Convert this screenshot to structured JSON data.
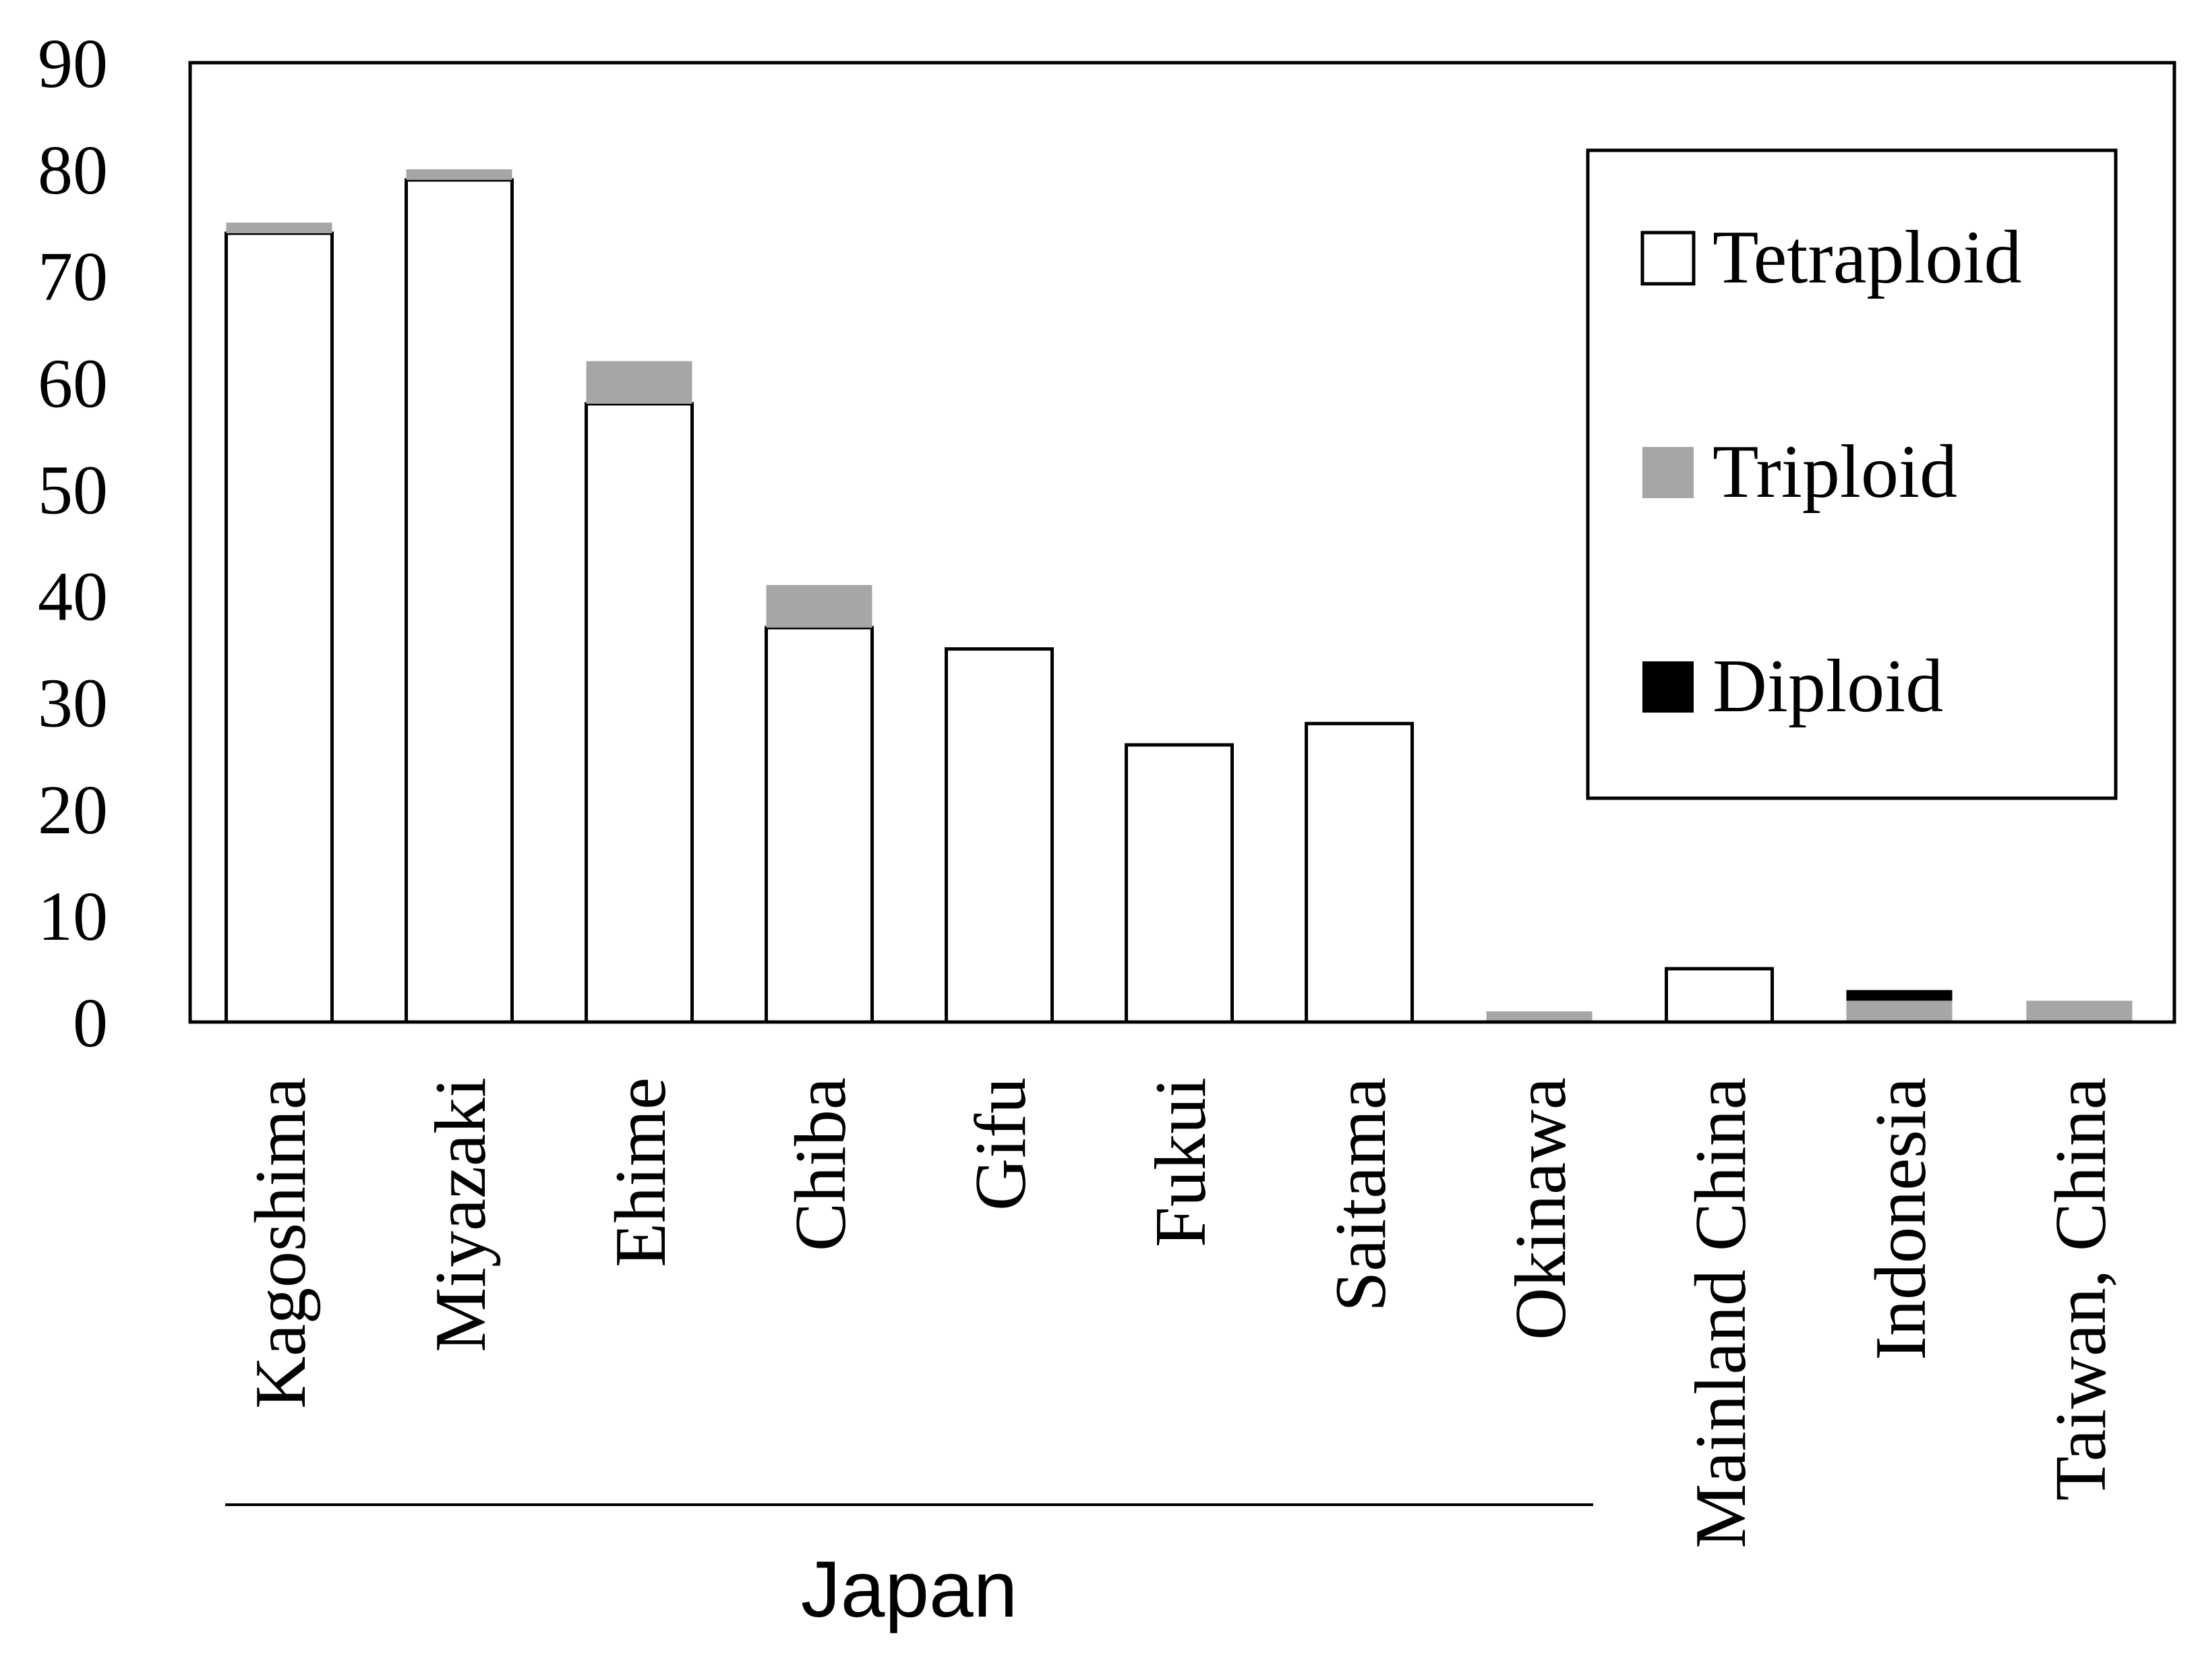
{
  "chart_data": {
    "type": "bar",
    "stacked": true,
    "title": "",
    "xlabel": "",
    "ylabel": "",
    "ylim": [
      0,
      90
    ],
    "yticks": [
      0,
      10,
      20,
      30,
      40,
      50,
      60,
      70,
      80,
      90
    ],
    "grid": false,
    "legend_position": "top-right",
    "categories": [
      "Kagoshima",
      "Miyazaki",
      "Ehime",
      "Chiba",
      "Gifu",
      "Fukui",
      "Saitama",
      "Okinawa",
      "Mainland China",
      "Indonesia",
      "Taiwan, China"
    ],
    "series": [
      {
        "name": "Tetraploid",
        "color": "#ffffff",
        "values": [
          74,
          79,
          58,
          37,
          35,
          26,
          28,
          0,
          5,
          0,
          0
        ]
      },
      {
        "name": "Triploid",
        "color": "#a6a6a6",
        "values": [
          1,
          1,
          4,
          4,
          0,
          0,
          0,
          1,
          0,
          2,
          2
        ]
      },
      {
        "name": "Diploid",
        "color": "#000000",
        "values": [
          0,
          0,
          0,
          0,
          0,
          0,
          0,
          0,
          0,
          1,
          0
        ]
      }
    ],
    "group_label": {
      "text": "Japan",
      "from_category": "Kagoshima",
      "to_category": "Okinawa"
    }
  }
}
